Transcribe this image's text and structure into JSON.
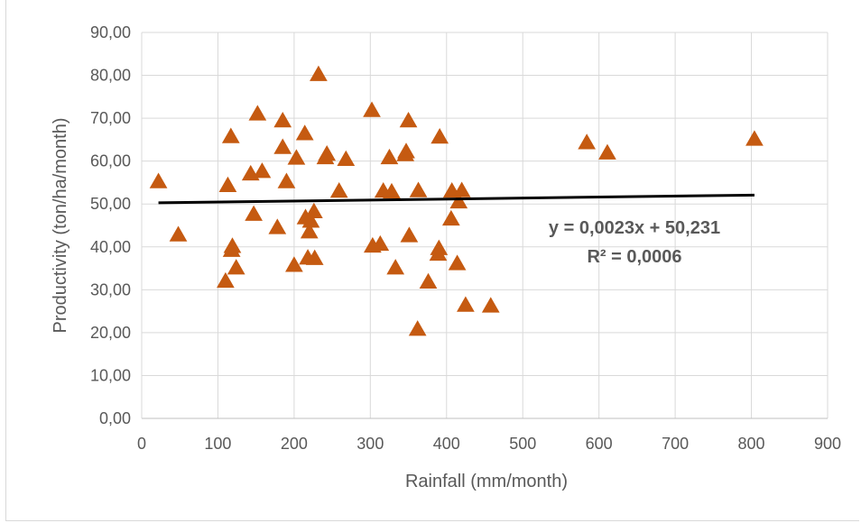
{
  "chart_data": {
    "type": "scatter",
    "title": "",
    "xlabel": "Rainfall (mm/month)",
    "ylabel": "Productivity (ton/ha/month)",
    "xlim": [
      0,
      900
    ],
    "ylim": [
      0,
      90
    ],
    "x_ticks": [
      0,
      100,
      200,
      300,
      400,
      500,
      600,
      700,
      800,
      900
    ],
    "x_tick_labels": [
      "0",
      "100",
      "200",
      "300",
      "400",
      "500",
      "600",
      "700",
      "800",
      "900"
    ],
    "y_ticks": [
      0,
      10,
      20,
      30,
      40,
      50,
      60,
      70,
      80,
      90
    ],
    "y_tick_labels": [
      "0,00",
      "10,00",
      "20,00",
      "30,00",
      "40,00",
      "50,00",
      "60,00",
      "70,00",
      "80,00",
      "90,00"
    ],
    "grid": true,
    "marker": "triangle",
    "marker_color": "#c55a11",
    "trendline_color": "#000000",
    "series": [
      {
        "points": [
          [
            22,
            55.2
          ],
          [
            48,
            42.8
          ],
          [
            110,
            32.0
          ],
          [
            113,
            54.3
          ],
          [
            117,
            65.7
          ],
          [
            118,
            39.2
          ],
          [
            119,
            40.1
          ],
          [
            124,
            35.1
          ],
          [
            143,
            57.0
          ],
          [
            147,
            47.6
          ],
          [
            152,
            71.0
          ],
          [
            158,
            57.6
          ],
          [
            178,
            44.5
          ],
          [
            185,
            69.4
          ],
          [
            185,
            63.2
          ],
          [
            190,
            55.2
          ],
          [
            200,
            35.7
          ],
          [
            203,
            60.7
          ],
          [
            214,
            66.4
          ],
          [
            215,
            46.8
          ],
          [
            218,
            37.4
          ],
          [
            220,
            43.5
          ],
          [
            222,
            46.0
          ],
          [
            226,
            48.2
          ],
          [
            227,
            37.3
          ],
          [
            232,
            80.2
          ],
          [
            241,
            60.8
          ],
          [
            243,
            61.6
          ],
          [
            259,
            53.0
          ],
          [
            268,
            60.4
          ],
          [
            302,
            71.8
          ],
          [
            303,
            40.2
          ],
          [
            313,
            40.6
          ],
          [
            317,
            53.0
          ],
          [
            325,
            60.8
          ],
          [
            328,
            52.8
          ],
          [
            333,
            35.1
          ],
          [
            346,
            61.5
          ],
          [
            347,
            62.2
          ],
          [
            350,
            69.4
          ],
          [
            351,
            42.6
          ],
          [
            362,
            20.8
          ],
          [
            363,
            53.1
          ],
          [
            376,
            31.8
          ],
          [
            389,
            38.3
          ],
          [
            390,
            39.6
          ],
          [
            391,
            65.6
          ],
          [
            406,
            46.5
          ],
          [
            407,
            53.0
          ],
          [
            414,
            36.1
          ],
          [
            416,
            50.5
          ],
          [
            420,
            53.1
          ],
          [
            425,
            26.4
          ],
          [
            458,
            26.2
          ],
          [
            584,
            64.3
          ],
          [
            611,
            61.9
          ],
          [
            804,
            65.1
          ]
        ]
      }
    ],
    "trendline": {
      "slope": 0.0023,
      "intercept": 50.231,
      "x_range": [
        22,
        804
      ]
    },
    "annotation": {
      "equation": "y = 0,0023x + 50,231",
      "r2": "R² = 0,0006"
    }
  }
}
